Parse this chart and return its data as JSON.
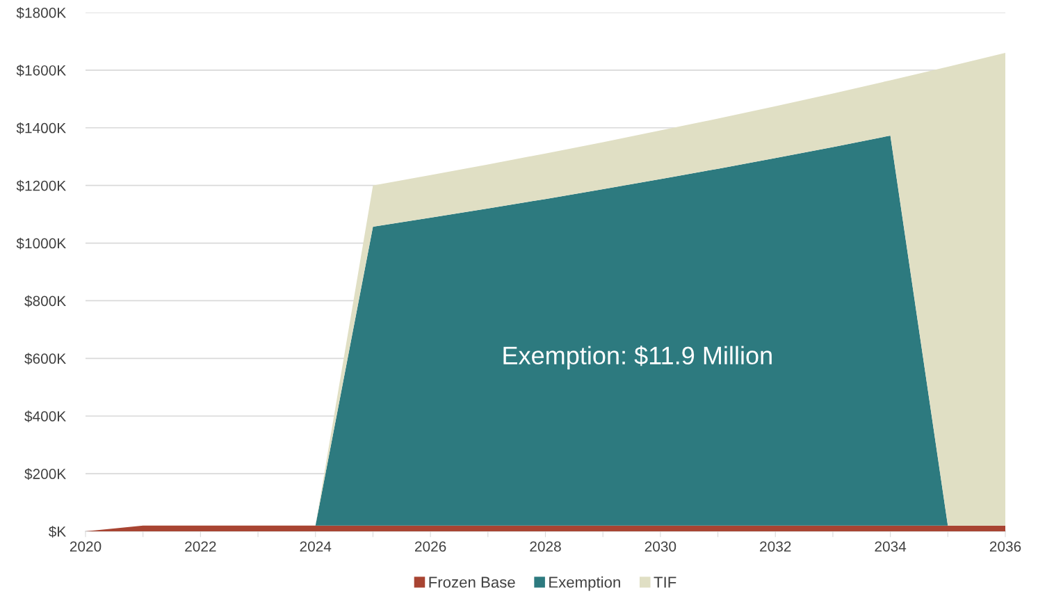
{
  "chart_data": {
    "type": "area",
    "stacked": true,
    "x": [
      2020,
      2021,
      2022,
      2023,
      2024,
      2025,
      2026,
      2027,
      2028,
      2029,
      2030,
      2031,
      2032,
      2033,
      2034,
      2035,
      2036
    ],
    "series": [
      {
        "name": "Frozen Base",
        "color": "#a84432",
        "values": [
          0,
          20,
          20,
          20,
          20,
          20,
          20,
          20,
          20,
          20,
          20,
          20,
          20,
          20,
          20,
          20,
          20
        ]
      },
      {
        "name": "Exemption",
        "color": "#2d7a7f",
        "values": [
          0,
          0,
          0,
          0,
          0,
          1037,
          1068,
          1100,
          1133,
          1167,
          1202,
          1238,
          1275,
          1313,
          1353,
          0,
          0
        ]
      },
      {
        "name": "TIF",
        "color": "#e0dfc4",
        "values": [
          0,
          0,
          0,
          0,
          0,
          143,
          148,
          153,
          158,
          163,
          169,
          174,
          180,
          186,
          192,
          1592,
          1640
        ]
      }
    ],
    "xlim": [
      2020,
      2036
    ],
    "xticks": [
      2020,
      {
        "value": 2021,
        "label": null
      },
      2022,
      {
        "value": 2023,
        "label": null
      },
      2024,
      {
        "value": 2025,
        "label": null
      },
      2026,
      {
        "value": 2027,
        "label": null
      },
      2028,
      {
        "value": 2029,
        "label": null
      },
      2030,
      {
        "value": 2031,
        "label": null
      },
      2032,
      {
        "value": 2033,
        "label": null
      },
      2034,
      {
        "value": 2035,
        "label": null
      },
      2036
    ],
    "ylim": [
      0,
      1800
    ],
    "yticks": [
      {
        "value": 0,
        "label": "$K"
      },
      {
        "value": 200,
        "label": "$200K"
      },
      {
        "value": 400,
        "label": "$400K"
      },
      {
        "value": 600,
        "label": "$600K"
      },
      {
        "value": 800,
        "label": "$800K"
      },
      {
        "value": 1000,
        "label": "$1000K"
      },
      {
        "value": 1200,
        "label": "$1200K"
      },
      {
        "value": 1400,
        "label": "$1400K"
      },
      {
        "value": 1600,
        "label": "$1600K"
      },
      {
        "value": 1800,
        "label": "$1800K"
      }
    ],
    "grid": "y",
    "legend": "bottom",
    "annotations": [
      "Exemption: $11.9 Million"
    ]
  }
}
